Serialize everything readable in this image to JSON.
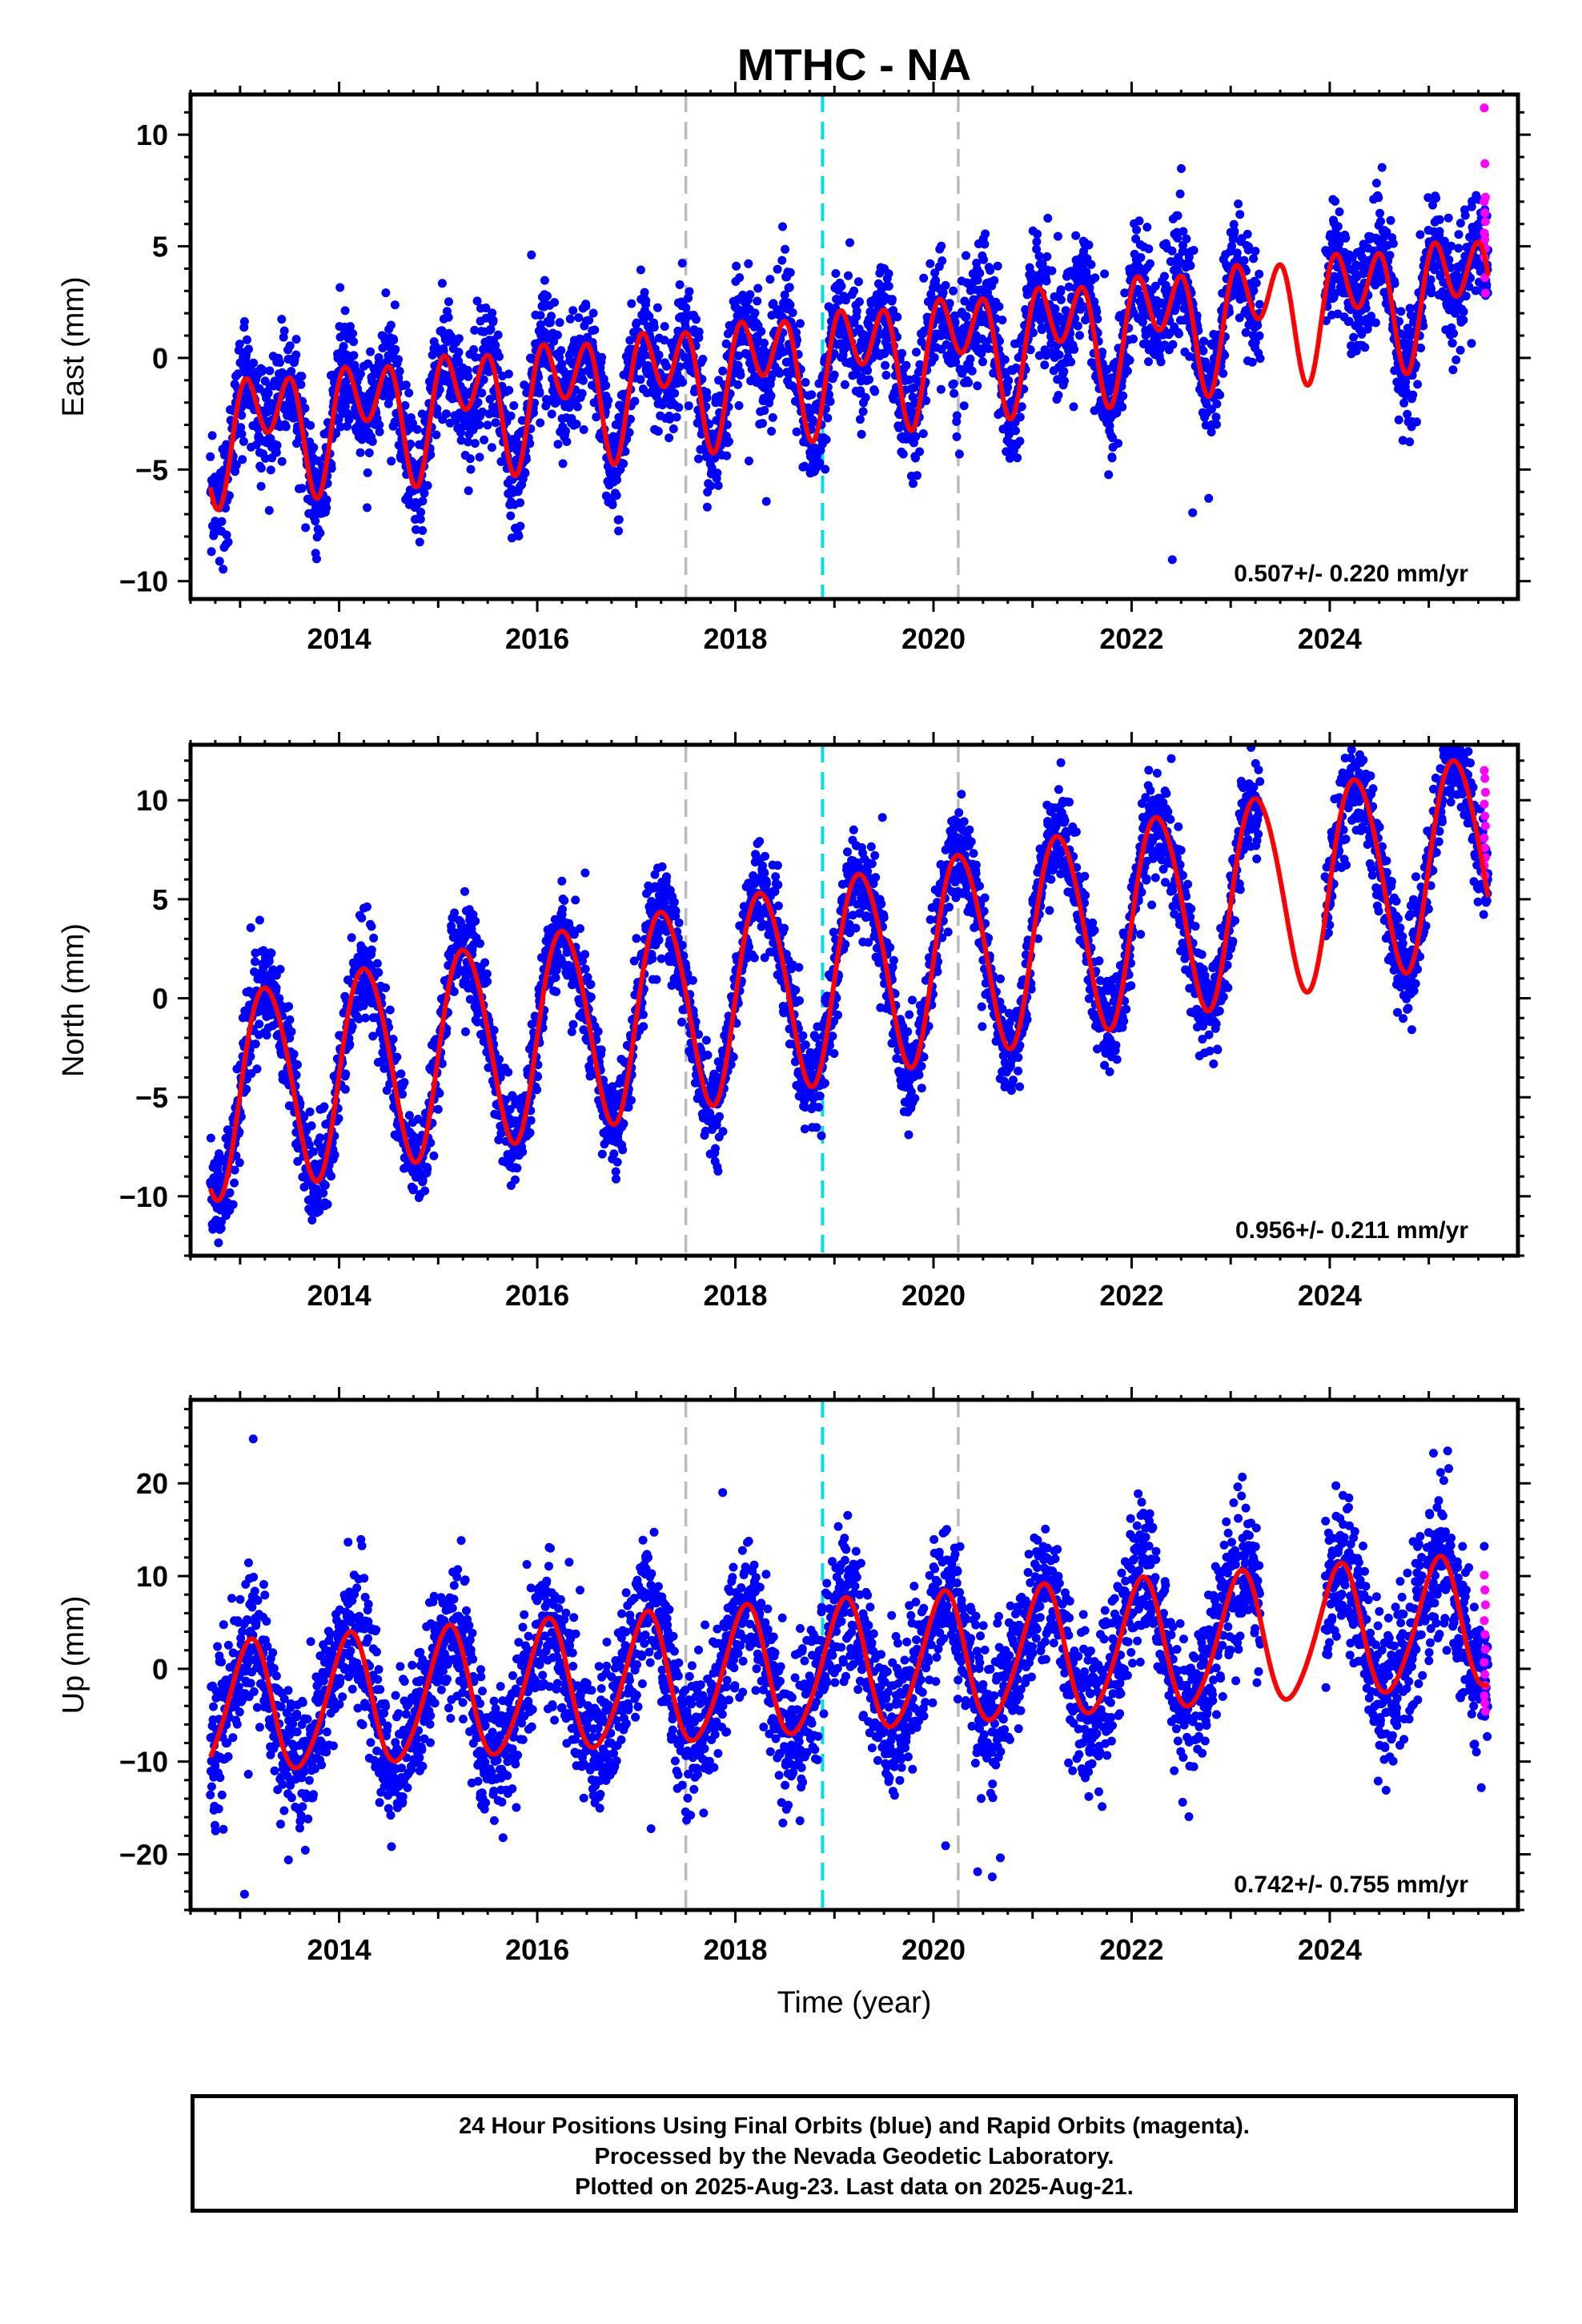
{
  "title": "MTHC - NA",
  "colors": {
    "final": "#0000ff",
    "rapid": "#ff00ff",
    "model": "#ff0000",
    "vline_gray": "#bbbbbb",
    "vline_cyan": "#00e0e0"
  },
  "chart_data": [
    {
      "type": "scatter",
      "name": "east",
      "ylabel": "East (mm)",
      "xlabel": "",
      "xlim": [
        2012.5,
        2025.9
      ],
      "ylim": [
        -10.8,
        11.8
      ],
      "yticks": [
        -10,
        -5,
        0,
        5,
        10
      ],
      "xticks": [
        2014,
        2016,
        2018,
        2020,
        2022,
        2024
      ],
      "rate": "0.507+/- 0.220 mm/yr",
      "vlines": [
        {
          "x": 2017.5,
          "style": "gray"
        },
        {
          "x": 2018.88,
          "style": "cyan"
        },
        {
          "x": 2020.25,
          "style": "gray"
        }
      ],
      "model": {
        "start": 2012.7,
        "end": 2025.6,
        "offset": -3.3,
        "trend": 0.507,
        "annual": [
          1.6,
          -0.2
        ],
        "semiannual": [
          0.7,
          1.8
        ]
      },
      "scatter": {
        "sigma": 1.3
      },
      "rapid": [
        11.2,
        8.7,
        7.2,
        7.0,
        6.5,
        6.1,
        5.6,
        5.3,
        4.9,
        4.5,
        3.6,
        2.9
      ]
    },
    {
      "type": "scatter",
      "name": "north",
      "ylabel": "North (mm)",
      "xlabel": "",
      "xlim": [
        2012.5,
        2025.9
      ],
      "ylim": [
        -13,
        12.8
      ],
      "yticks": [
        -10,
        -5,
        0,
        5,
        10
      ],
      "xticks": [
        2014,
        2016,
        2018,
        2020,
        2022,
        2024
      ],
      "rate": "0.956+/- 0.211 mm/yr",
      "vlines": [
        {
          "x": 2017.5,
          "style": "gray"
        },
        {
          "x": 2018.88,
          "style": "cyan"
        },
        {
          "x": 2020.25,
          "style": "gray"
        }
      ],
      "model": {
        "start": 2012.7,
        "end": 2025.6,
        "offset": -4.9,
        "trend": 0.956,
        "annual": [
          5.1,
          -0.4
        ],
        "semiannual": [
          0.3,
          0.2
        ]
      },
      "scatter": {
        "sigma": 1.2
      },
      "rapid": [
        11.5,
        11.1,
        10.4,
        9.8,
        9.2,
        8.7,
        8.1,
        7.6,
        7.1,
        6.7,
        6.2
      ]
    },
    {
      "type": "scatter",
      "name": "up",
      "ylabel": "Up (mm)",
      "xlabel": "Time (year)",
      "xlim": [
        2012.5,
        2025.9
      ],
      "ylim": [
        -26,
        29
      ],
      "yticks": [
        -20,
        -10,
        0,
        10,
        20
      ],
      "xticks": [
        2014,
        2016,
        2018,
        2020,
        2022,
        2024
      ],
      "rate": "0.742+/- 0.755 mm/yr",
      "vlines": [
        {
          "x": 2017.5,
          "style": "gray"
        },
        {
          "x": 2018.88,
          "style": "cyan"
        },
        {
          "x": 2020.25,
          "style": "gray"
        }
      ],
      "model": {
        "start": 2012.7,
        "end": 2025.6,
        "offset": -4.6,
        "trend": 0.742,
        "annual": [
          4.0,
          5.8
        ],
        "semiannual": [
          0.6,
          -0.4
        ]
      },
      "scatter": {
        "sigma": 3.8
      },
      "rapid": [
        10.1,
        8.5,
        6.9,
        5.2,
        3.7,
        2.1,
        0.7,
        -0.6,
        -1.8,
        -2.9,
        -3.7,
        -4.6
      ]
    }
  ],
  "footer": {
    "line1": "24 Hour Positions Using Final Orbits (blue) and Rapid Orbits (magenta).",
    "line2": "Processed by the Nevada Geodetic Laboratory.",
    "line3": "Plotted on 2025-Aug-23. Last data on 2025-Aug-21."
  }
}
